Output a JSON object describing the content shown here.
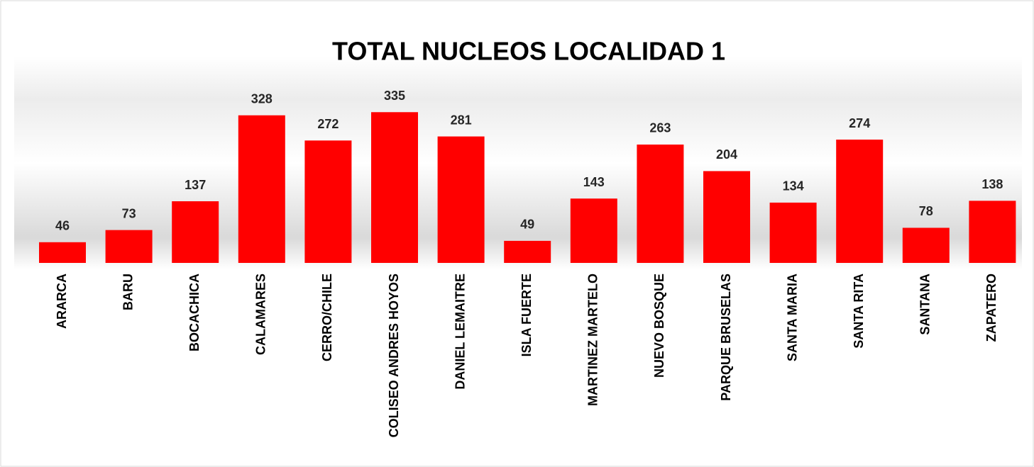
{
  "chart_data": {
    "type": "bar",
    "title": "TOTAL NUCLEOS LOCALIDAD 1",
    "categories": [
      "ARARCA",
      "BARU",
      "BOCACHICA",
      "CALAMARES",
      "CERRO/CHILE",
      "COLISEO ANDRES HOYOS",
      "DANIEL LEMAITRE",
      "ISLA FUERTE",
      "MARTINEZ MARTELO",
      "NUEVO BOSQUE",
      "PARQUE BRUSELAS",
      "SANTA MARIA",
      "SANTA RITA",
      "SANTANA",
      "ZAPATERO"
    ],
    "values": [
      46,
      73,
      137,
      328,
      272,
      335,
      281,
      49,
      143,
      263,
      204,
      134,
      274,
      78,
      138
    ],
    "color": "#ff0000",
    "ylim": [
      0,
      400
    ]
  }
}
